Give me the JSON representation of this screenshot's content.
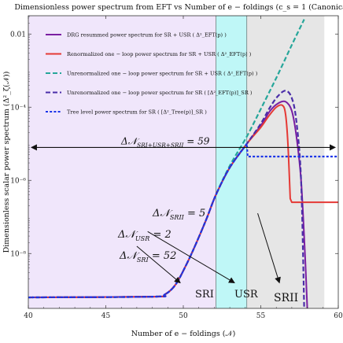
{
  "chart_data": {
    "type": "line",
    "title": "Dimensionless power spectrum from EFT vs Number of e − foldings (c_s = 1 (Canonical)",
    "xlabel": "Number of e − foldings (𝒩)",
    "ylabel": "Dimensionless scalar power spectrum (Δ²_ζ(𝒩))",
    "xlim": [
      40,
      60
    ],
    "ylim_log10": [
      -9.5,
      -1.5
    ],
    "y_scale": "log",
    "x_ticks": [
      40,
      45,
      50,
      55,
      60
    ],
    "x_tick_labels": [
      "40",
      "45",
      "50",
      "55",
      "60"
    ],
    "y_ticks_log10": [
      -8,
      -6,
      -4,
      -2
    ],
    "y_tick_labels": [
      "10⁻⁸",
      "10⁻⁶",
      "10⁻⁴",
      "0.01"
    ],
    "grid": false,
    "legend_position": "top-left",
    "regions": [
      {
        "label": "SRI",
        "x_range": [
          40,
          52.1
        ],
        "color": "#f0e6fb"
      },
      {
        "label": "USR",
        "x_range": [
          52.1,
          54.1
        ],
        "color": "#bff7f7"
      },
      {
        "label": "SRII",
        "x_range": [
          54.1,
          59.1
        ],
        "color": "#e6e6e6"
      }
    ],
    "series": [
      {
        "name": "DRG resummed power spectrum for SR + USR (Δ²_EFT(p) overline)",
        "color": "#7b1fa2",
        "style": "solid",
        "x": [
          40,
          48,
          48.8,
          49.5,
          50.2,
          50.8,
          51.5,
          52.1,
          53,
          54.1,
          55,
          55.6,
          56.1,
          56.6,
          57.0,
          57.3,
          57.6,
          57.85,
          58.0
        ],
        "y_log10": [
          -9.2,
          -9.18,
          -9.12,
          -8.85,
          -8.3,
          -7.75,
          -7.05,
          -6.4,
          -5.65,
          -5.0,
          -4.5,
          -4.1,
          -3.9,
          -3.85,
          -4.1,
          -4.8,
          -6.0,
          -8.0,
          -9.5
        ]
      },
      {
        "name": "Renormalized one − loop power spectrum for SR + USR (Δ²_EFT(p))",
        "color": "#e53935",
        "style": "solid",
        "x": [
          40,
          48,
          48.8,
          49.5,
          50.2,
          50.8,
          51.5,
          52.1,
          53,
          54.1,
          55,
          55.5,
          56.0,
          56.4,
          56.6,
          56.75,
          56.9,
          57.0,
          60
        ],
        "y_log10": [
          -9.2,
          -9.18,
          -9.12,
          -8.85,
          -8.3,
          -7.75,
          -7.05,
          -6.4,
          -5.65,
          -5.0,
          -4.55,
          -4.25,
          -4.0,
          -3.95,
          -4.2,
          -5.0,
          -6.5,
          -6.6,
          -6.6
        ]
      },
      {
        "name": "Unrenormalized one − loop power spectrum for SR + USR (Δ²_EFT(p))",
        "color": "#26a69a",
        "style": "dashed",
        "x": [
          40,
          48,
          48.8,
          49.5,
          50.2,
          50.8,
          51.5,
          52.1,
          53,
          54.1,
          55,
          56,
          57,
          57.8
        ],
        "y_log10": [
          -9.2,
          -9.18,
          -9.12,
          -8.85,
          -8.3,
          -7.75,
          -7.05,
          -6.4,
          -5.6,
          -4.8,
          -4.05,
          -3.2,
          -2.3,
          -1.6
        ]
      },
      {
        "name": "Unrenormalized one − loop power spectrum for SR ([Δ²_EFT(p)]_SR)",
        "color": "#4a2ea8",
        "style": "dashed",
        "x": [
          40,
          48,
          48.8,
          49.5,
          50.2,
          50.8,
          51.5,
          52.1,
          53,
          54.1,
          55,
          55.6,
          56.1,
          56.6,
          57.0,
          57.3,
          57.6,
          57.8
        ],
        "y_log10": [
          -9.2,
          -9.18,
          -9.12,
          -8.85,
          -8.3,
          -7.75,
          -7.05,
          -6.4,
          -5.65,
          -5.0,
          -4.45,
          -4.0,
          -3.7,
          -3.55,
          -3.75,
          -4.4,
          -6.0,
          -9.5
        ]
      },
      {
        "name": "Tree level power spectrum for SR ([Δ²_Tree(p)]_SR)",
        "color": "#1a34e8",
        "style": "dotted",
        "x": [
          40,
          48,
          48.8,
          49.5,
          50.2,
          50.8,
          51.5,
          52.1,
          53,
          54.1,
          54.15,
          60
        ],
        "y_log10": [
          -9.2,
          -9.18,
          -9.12,
          -8.85,
          -8.3,
          -7.75,
          -7.05,
          -6.4,
          -5.65,
          -5.0,
          -5.35,
          -5.35
        ]
      }
    ],
    "annotations": [
      {
        "text": "Δ𝒩_SRI+USR+SRII = 59",
        "type": "double-arrow",
        "x_range": [
          40.2,
          59.8
        ],
        "y_log10": -5.1
      },
      {
        "text": "Δ𝒩_SRII = 5",
        "type": "arrow",
        "from": [
          54.8,
          -6.9
        ],
        "to": [
          56.2,
          -8.8
        ]
      },
      {
        "text": "Δ𝒩_USR = 2",
        "type": "arrow",
        "from": [
          47.7,
          -7.4
        ],
        "to": [
          53.3,
          -8.8
        ]
      },
      {
        "text": "Δ𝒩_SRI = 52",
        "type": "arrow",
        "from": [
          47.0,
          -7.8
        ],
        "to": [
          49.8,
          -8.8
        ]
      }
    ]
  },
  "legend": [
    {
      "label": "DRG resummed power spectrum for SR + USR ( Δ²_EFT(p) )",
      "color": "#7b1fa2",
      "style": "solid"
    },
    {
      "label": "Renormalized one − loop power spectrum for SR + USR ( Δ²_EFT(p) )",
      "color": "#e53935",
      "style": "solid"
    },
    {
      "label": "Unrenormalized one − loop power spectrum for SR + USR ( Δ²_EFT(p) )",
      "color": "#26a69a",
      "style": "dashed"
    },
    {
      "label": "Unrenormalized one − loop power spectrum for SR ( [Δ²_EFT(p)]_SR )",
      "color": "#4a2ea8",
      "style": "dashed"
    },
    {
      "label": "Tree level power spectrum for SR ( [Δ²_Tree(p)]_SR )",
      "color": "#1a34e8",
      "style": "dotted"
    }
  ],
  "annotation_texts": {
    "total": "Δ𝒩",
    "total_sub": "SRI+USR+SRII",
    "total_val": " = 59",
    "srii": "Δ𝒩",
    "srii_sub": "SRII",
    "srii_val": " = 5",
    "usr": "Δ𝒩",
    "usr_sub": "USR",
    "usr_val": " = 2",
    "sri": "Δ𝒩",
    "sri_sub": "SRI",
    "sri_val": " = 52"
  },
  "region_labels": {
    "sri": "SRI",
    "usr": "USR",
    "srii": "SRII"
  }
}
